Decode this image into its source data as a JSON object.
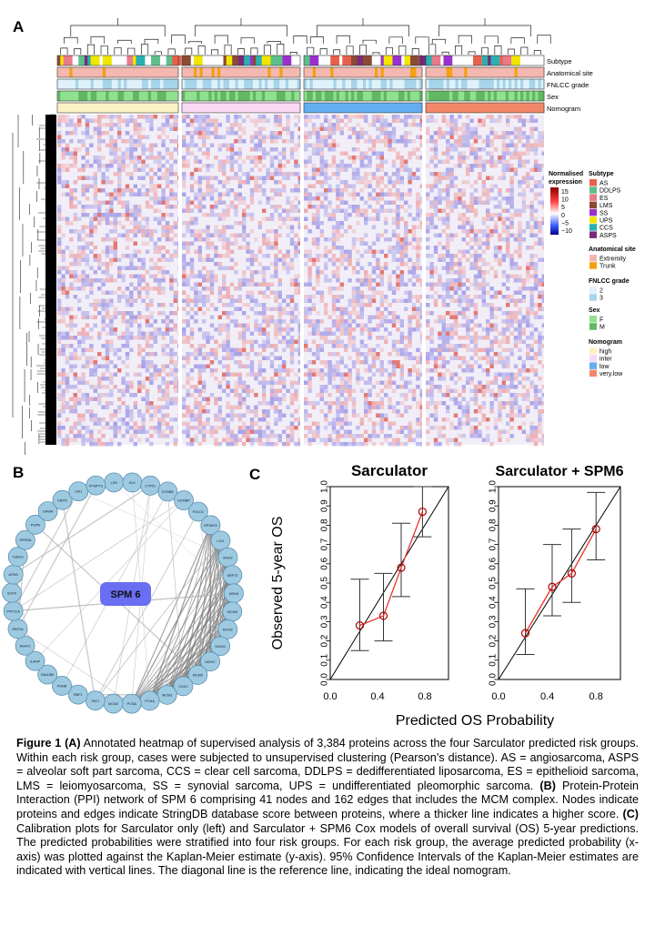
{
  "panels": {
    "a": "A",
    "b": "B",
    "c": "C"
  },
  "heatmap": {
    "annotation_rows": [
      "Subtype",
      "Anatomical site",
      "FNLCC grade",
      "Sex",
      "Nomogram"
    ],
    "legend": {
      "expression_title_1": "Normalised",
      "expression_title_2": "expression",
      "expression_ticks": [
        "15",
        "10",
        "5",
        "0",
        "−5",
        "−10"
      ],
      "groups": [
        {
          "title": "Subtype",
          "items": [
            {
              "label": "AS",
              "color": "#e8604a"
            },
            {
              "label": "DDLPS",
              "color": "#5fbf8a"
            },
            {
              "label": "ES",
              "color": "#e87a8a"
            },
            {
              "label": "LMS",
              "color": "#8b4a32"
            },
            {
              "label": "SS",
              "color": "#9b30d0"
            },
            {
              "label": "UPS",
              "color": "#f2e600"
            },
            {
              "label": "CCS",
              "color": "#2ab0b0"
            },
            {
              "label": "ASPS",
              "color": "#7a2a7a"
            }
          ]
        },
        {
          "title": "Anatomical site",
          "items": [
            {
              "label": "Extremity",
              "color": "#f4b8b0"
            },
            {
              "label": "Trunk",
              "color": "#f5a010"
            }
          ]
        },
        {
          "title": "FNLCC grade",
          "items": [
            {
              "label": "2",
              "color": "#dff2fa"
            },
            {
              "label": "3",
              "color": "#a6d4ea"
            }
          ]
        },
        {
          "title": "Sex",
          "items": [
            {
              "label": "F",
              "color": "#8fe08f"
            },
            {
              "label": "M",
              "color": "#62b862"
            }
          ]
        },
        {
          "title": "Nomogram",
          "items": [
            {
              "label": "high",
              "color": "#fcf3c4"
            },
            {
              "label": "inter",
              "color": "#f9d8f3"
            },
            {
              "label": "low",
              "color": "#63aef0"
            },
            {
              "label": "very.low",
              "color": "#f2876a"
            }
          ]
        }
      ]
    }
  },
  "network": {
    "center_label": "SPM 6",
    "node_labels": [
      "LSR",
      "DLK",
      "CYP51",
      "DYNBB",
      "HCMBP",
      "POLD1",
      "RPS6S3",
      "LIG1",
      "MSH2",
      "SRP72",
      "MSH6",
      "MCM6",
      "MCM2",
      "MCM4",
      "MCM7",
      "MCM5",
      "CDK1",
      "MCM3",
      "PCNA",
      "PCNA",
      "MCM2",
      "TAF1",
      "RBF1",
      "PSMB",
      "DNAJB6",
      "ILAMP",
      "AGAT2",
      "RBF2A",
      "PPP2CA",
      "SOX9",
      "AFMS",
      "TUBG1",
      "SPRNA",
      "PSPN",
      "GRWA",
      "CRIP2",
      "LIR1",
      "RTMPT3"
    ]
  },
  "chart_data": [
    {
      "type": "scatter",
      "title": "Sarculator",
      "xlabel": "Predicted OS Probability",
      "ylabel": "Observed 5-year OS",
      "xlim": [
        0,
        1
      ],
      "ylim": [
        0,
        1
      ],
      "xticks": [
        "0.0",
        "0.4",
        "0.8"
      ],
      "yticks": [
        "0.0",
        "0.1",
        "0.2",
        "0.3",
        "0.4",
        "0.5",
        "0.6",
        "0.7",
        "0.8",
        "0.9",
        "1.0"
      ],
      "x": [
        0.25,
        0.45,
        0.6,
        0.78
      ],
      "y": [
        0.28,
        0.33,
        0.58,
        0.87
      ],
      "ci_low": [
        0.15,
        0.2,
        0.43,
        0.74
      ],
      "ci_high": [
        0.52,
        0.55,
        0.81,
        1.0
      ]
    },
    {
      "type": "scatter",
      "title": "Sarculator + SPM6",
      "xlabel": "Predicted OS Probability",
      "ylabel": "",
      "xlim": [
        0,
        1
      ],
      "ylim": [
        0,
        1
      ],
      "xticks": [
        "0.0",
        "0.4",
        "0.8"
      ],
      "yticks": [
        "0.0",
        "0.1",
        "0.2",
        "0.3",
        "0.4",
        "0.5",
        "0.6",
        "0.7",
        "0.8",
        "0.9",
        "1.0"
      ],
      "x": [
        0.22,
        0.44,
        0.6,
        0.8
      ],
      "y": [
        0.24,
        0.48,
        0.55,
        0.78
      ],
      "ci_low": [
        0.13,
        0.33,
        0.4,
        0.62
      ],
      "ci_high": [
        0.47,
        0.7,
        0.78,
        0.97
      ]
    }
  ],
  "caption": {
    "fig_label": "Figure 1",
    "a_tag": "(A)",
    "a_text": " Annotated heatmap of supervised analysis of 3,384 proteins across the four Sarculator predicted risk groups. Within each risk group, cases were subjected to unsupervised clustering (Pearson’s distance). AS = angiosarcoma, ASPS = alveolar soft part sarcoma, CCS = clear cell sarcoma, DDLPS = dedifferentiated liposarcoma, ES = epithelioid sarcoma, LMS = leiomyosarcoma, SS = synovial sarcoma, UPS = undifferentiated pleomorphic sarcoma. ",
    "b_tag": "(B)",
    "b_text": " Protein-Protein Interaction (PPI) network of SPM 6 comprising 41 nodes and 162 edges that includes the MCM complex. Nodes indicate proteins and edges indicate StringDB database score between proteins, where a thicker line indicates a higher score. ",
    "c_tag": "(C)",
    "c_text": " Calibration plots for Sarculator only (left) and Sarculator + SPM6 Cox models of overall survival (OS) 5-year predictions. The predicted probabilities were stratified into four risk groups. For each risk group, the average predicted probability (x-axis) was plotted against the Kaplan-Meier estimate (y-axis). 95% Confidence Intervals of the Kaplan-Meier estimates are indicated with vertical lines. The diagonal line is the reference line, indicating the ideal nomogram."
  }
}
